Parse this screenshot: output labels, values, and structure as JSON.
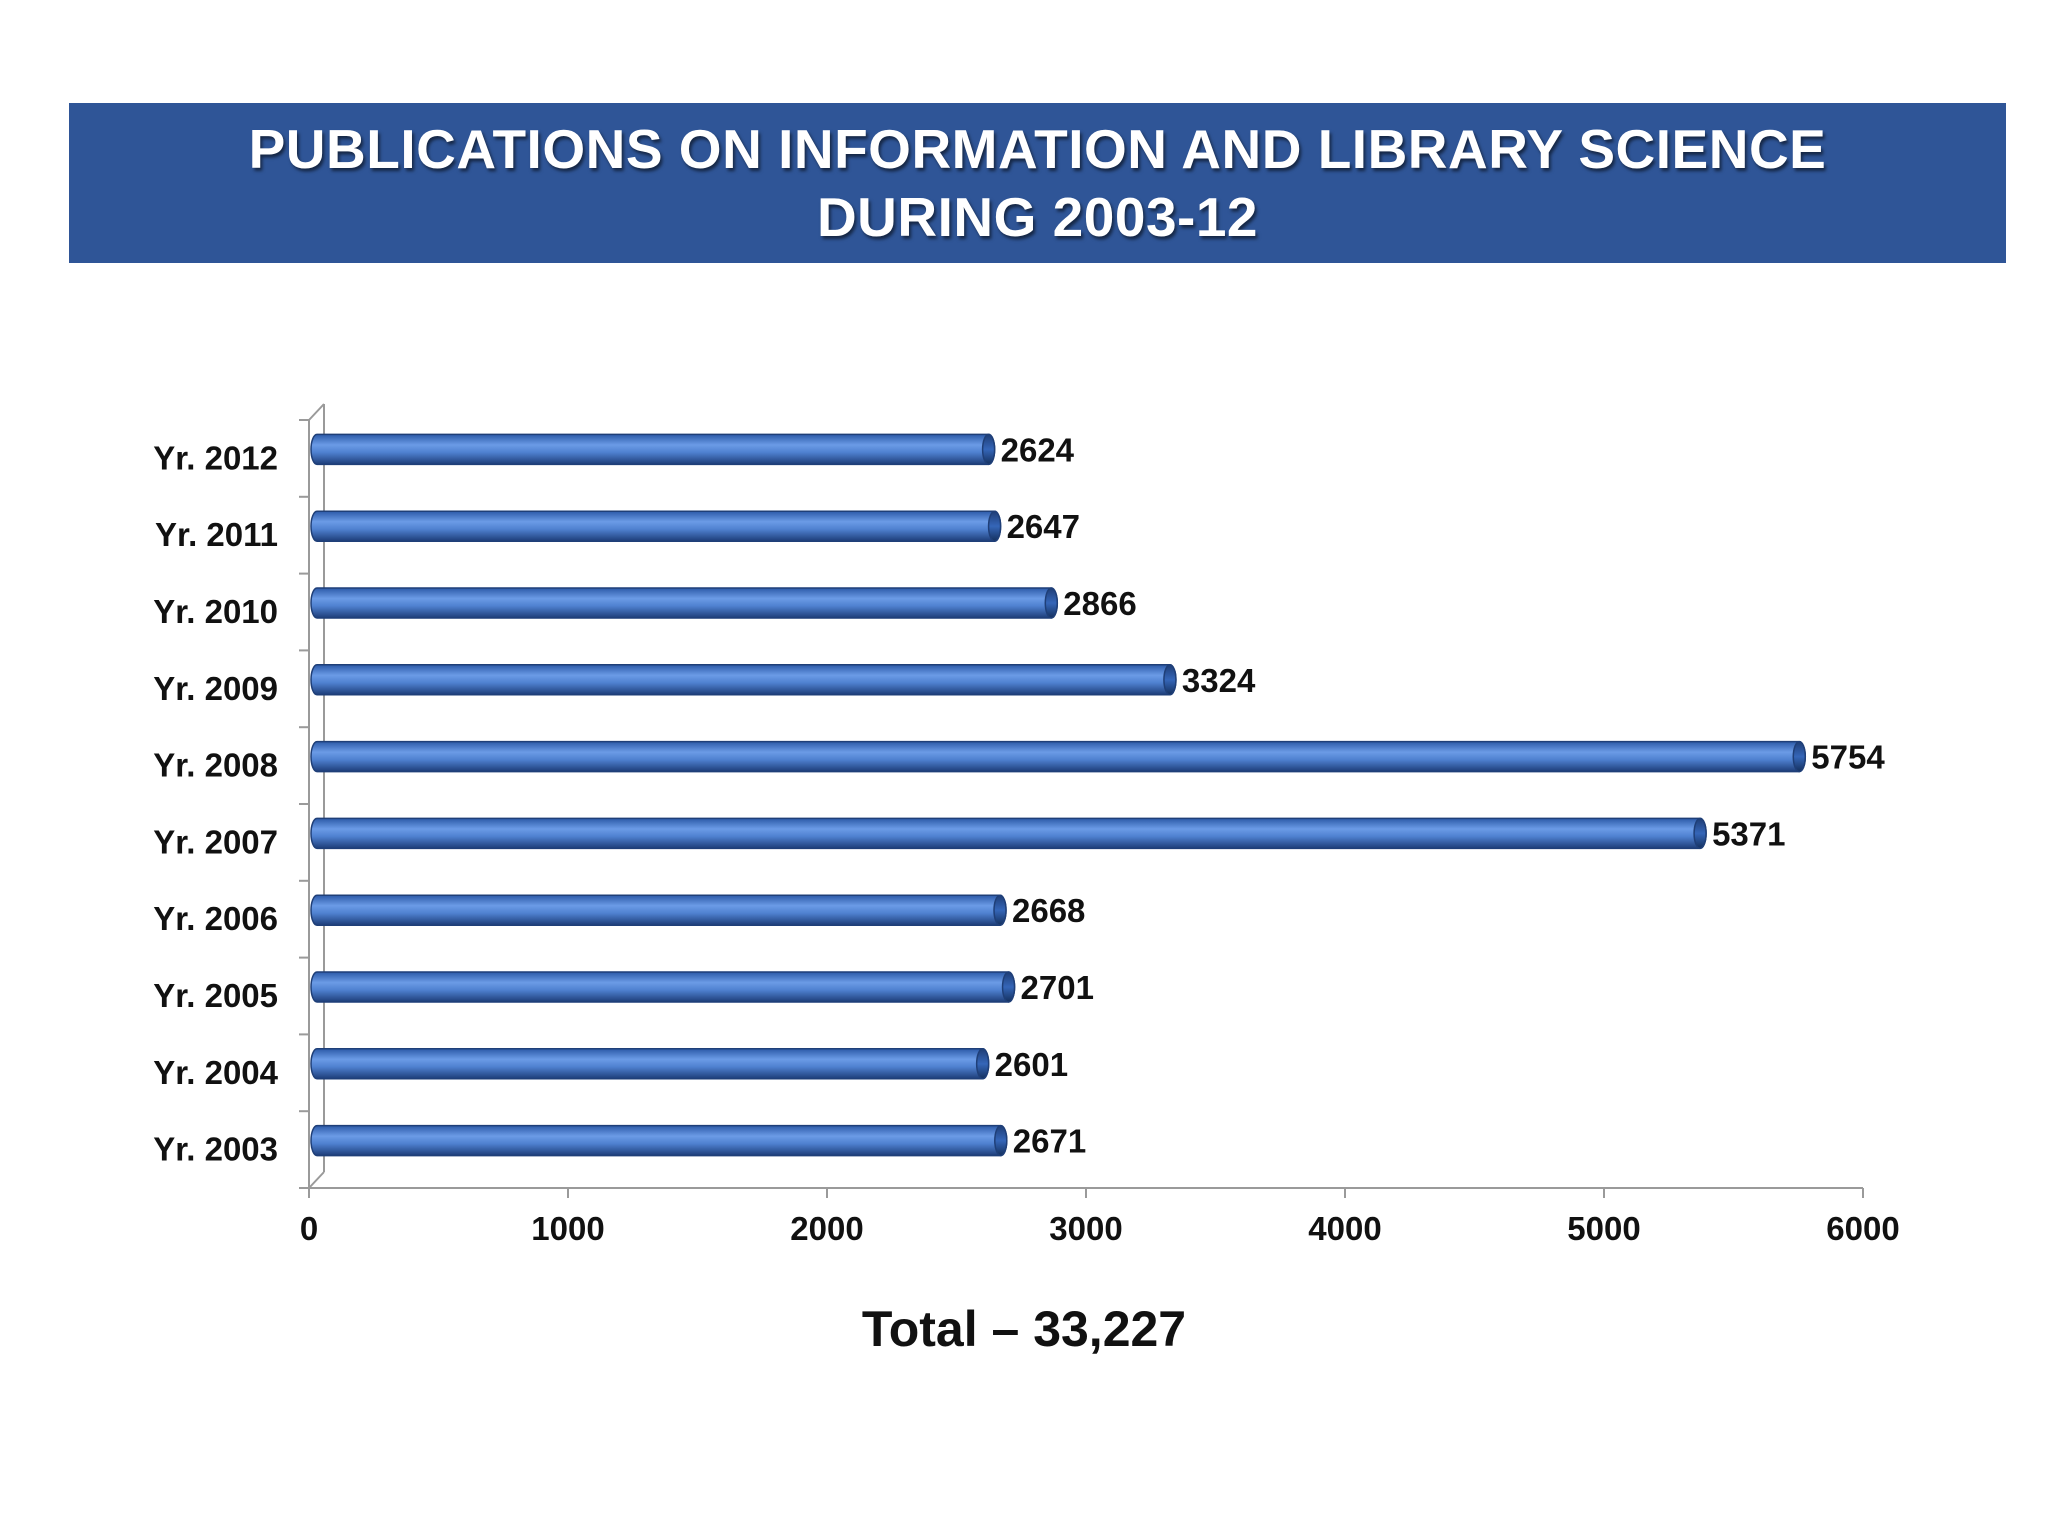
{
  "header": {
    "title_line1": "PUBLICATIONS ON INFORMATION AND LIBRARY SCIENCE",
    "title_line2": "DURING 2003-12"
  },
  "footer": {
    "total_text": "Total – 33,227"
  },
  "colors": {
    "header_bg": "#2f5597",
    "bar_fill": "#4f81d0",
    "bar_edge": "#1f3f78",
    "axis": "#9a9a9a",
    "label_text": "#111111"
  },
  "chart_data": {
    "type": "bar",
    "orientation": "horizontal",
    "style": "3d-cylinder",
    "categories": [
      "Yr. 2003",
      "Yr. 2004",
      "Yr. 2005",
      "Yr. 2006",
      "Yr. 2007",
      "Yr. 2008",
      "Yr. 2009",
      "Yr. 2010",
      "Yr. 2011",
      "Yr. 2012"
    ],
    "values": [
      2671,
      2601,
      2701,
      2668,
      5371,
      5754,
      3324,
      2866,
      2647,
      2624
    ],
    "data_labels": [
      "2671",
      "2601",
      "2701",
      "2668",
      "5371",
      "5754",
      "3324",
      "2866",
      "2647",
      "2624"
    ],
    "xlim": [
      0,
      6000
    ],
    "x_ticks": [
      0,
      1000,
      2000,
      3000,
      4000,
      5000,
      6000
    ],
    "x_tick_labels": [
      "0",
      "1000",
      "2000",
      "3000",
      "4000",
      "5000",
      "6000"
    ],
    "title": "PUBLICATIONS ON INFORMATION AND LIBRARY SCIENCE DURING 2003-12",
    "xlabel": "",
    "ylabel": "",
    "grid": false,
    "legend": "none"
  }
}
